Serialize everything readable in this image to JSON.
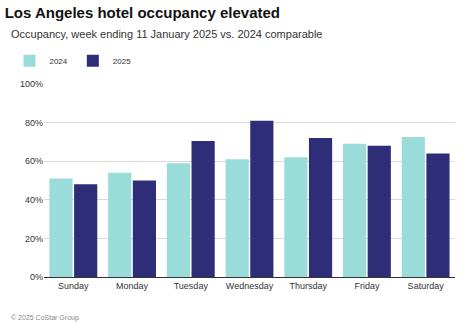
{
  "chart_data": {
    "type": "bar",
    "title": "Los Angeles hotel occupancy elevated",
    "subtitle": "Occupancy, week ending 11 January 2025 vs. 2024 comparable",
    "categories": [
      "Sunday",
      "Monday",
      "Tuesday",
      "Wednesday",
      "Thursday",
      "Friday",
      "Saturday"
    ],
    "series": [
      {
        "name": "2024",
        "color": "#9adcd9",
        "values": [
          51,
          54,
          59,
          61,
          62,
          69,
          72.5
        ]
      },
      {
        "name": "2025",
        "color": "#2e2d78",
        "values": [
          48,
          50,
          70.5,
          81,
          72,
          68,
          64
        ]
      }
    ],
    "ylim": [
      0,
      100
    ],
    "yticks": [
      {
        "value": 0,
        "label": "0%"
      },
      {
        "value": 20,
        "label": "20%"
      },
      {
        "value": 40,
        "label": "40%"
      },
      {
        "value": 60,
        "label": "60%"
      },
      {
        "value": 80,
        "label": "80%"
      },
      {
        "value": 100,
        "label": "100%"
      }
    ],
    "grid": true,
    "legend": "top left",
    "annotations": [
      "© 2025 CoStar Group"
    ]
  }
}
